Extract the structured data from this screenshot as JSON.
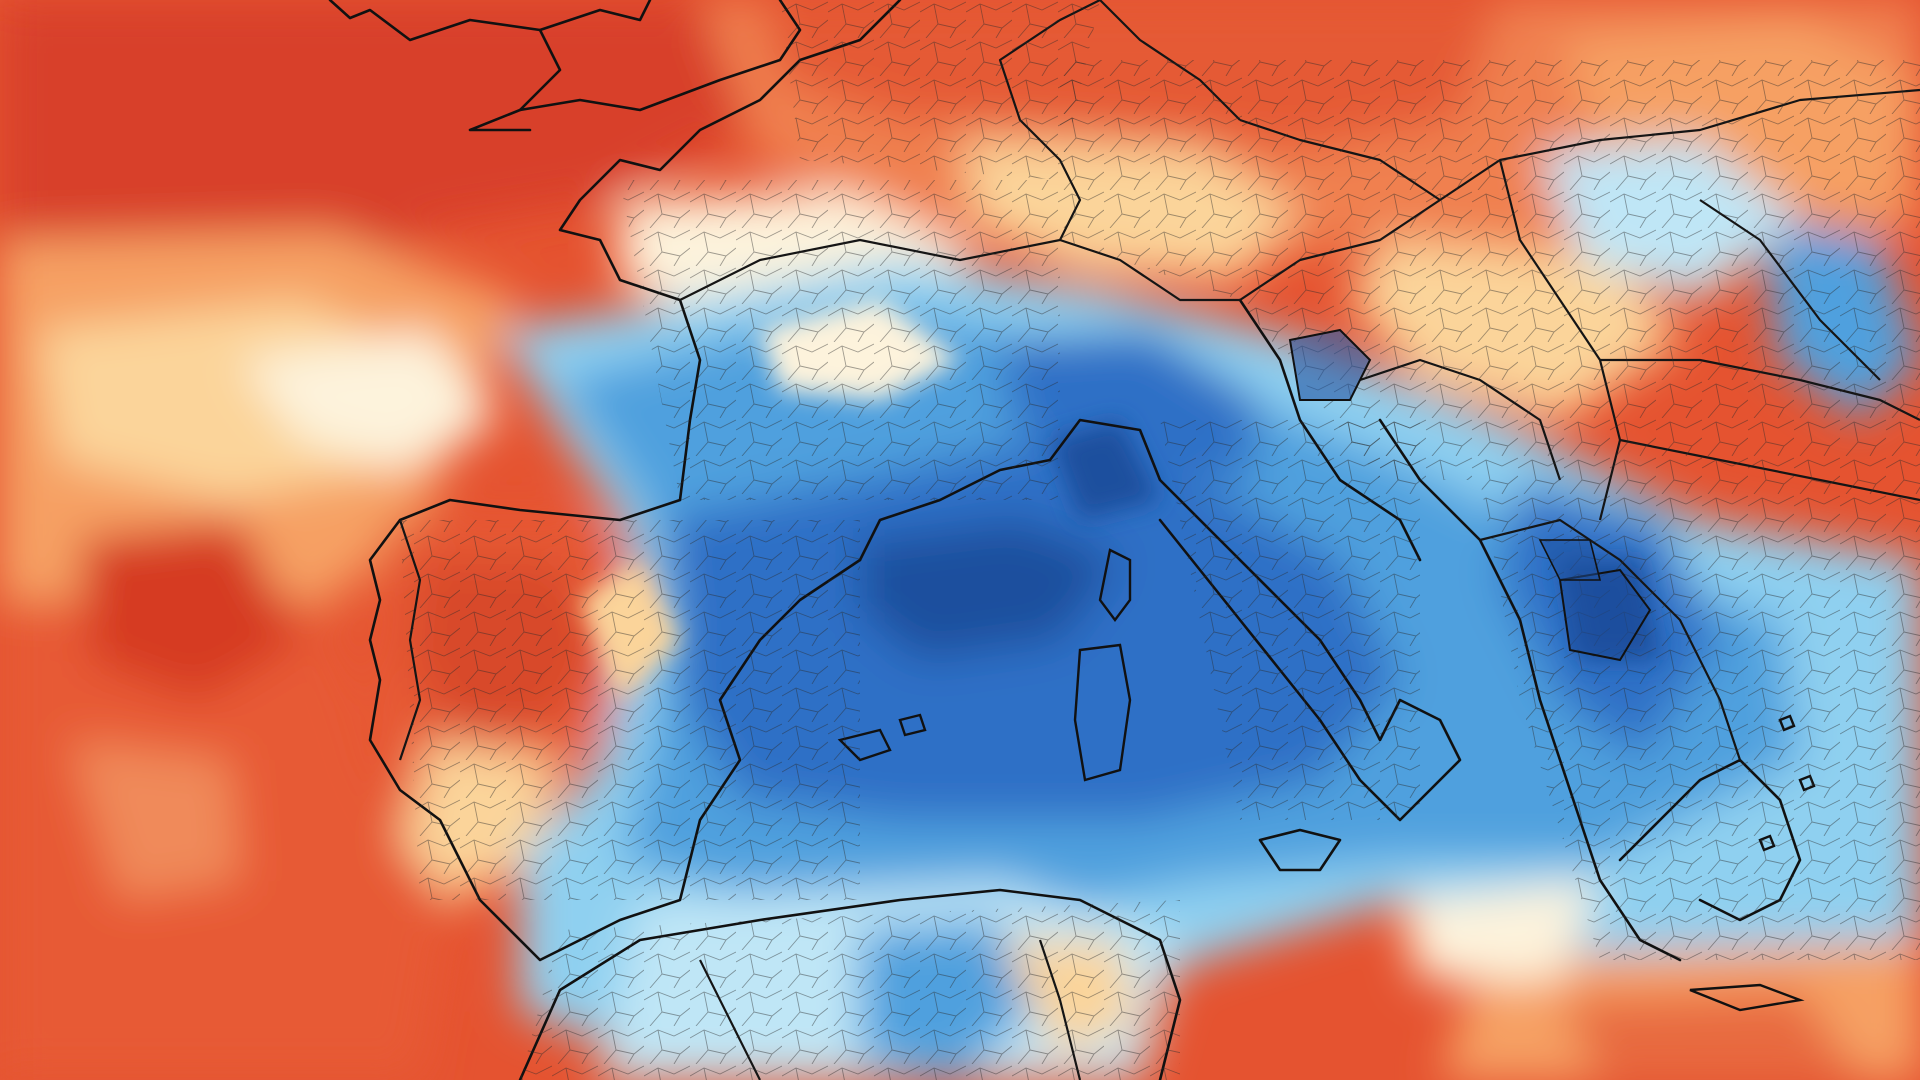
{
  "map": {
    "kind": "temperature-anomaly",
    "palette": {
      "warm_strong": "#d63a22",
      "warm": "#ec6a3c",
      "warm_light": "#f6a064",
      "warm_pale": "#fbd49a",
      "neutral": "#fdf3dc",
      "cool_pale": "#bfe6f6",
      "cool_light": "#8fd0f0",
      "cool": "#4fa0de",
      "cool_strong": "#2e6fc6",
      "cool_deep": "#1e4f9e"
    },
    "regions_depicted": [
      "british-isles",
      "france",
      "benelux",
      "germany",
      "iberia",
      "italy",
      "balkans",
      "greece",
      "north-africa",
      "mediterranean-sea",
      "atlantic-ocean"
    ]
  }
}
